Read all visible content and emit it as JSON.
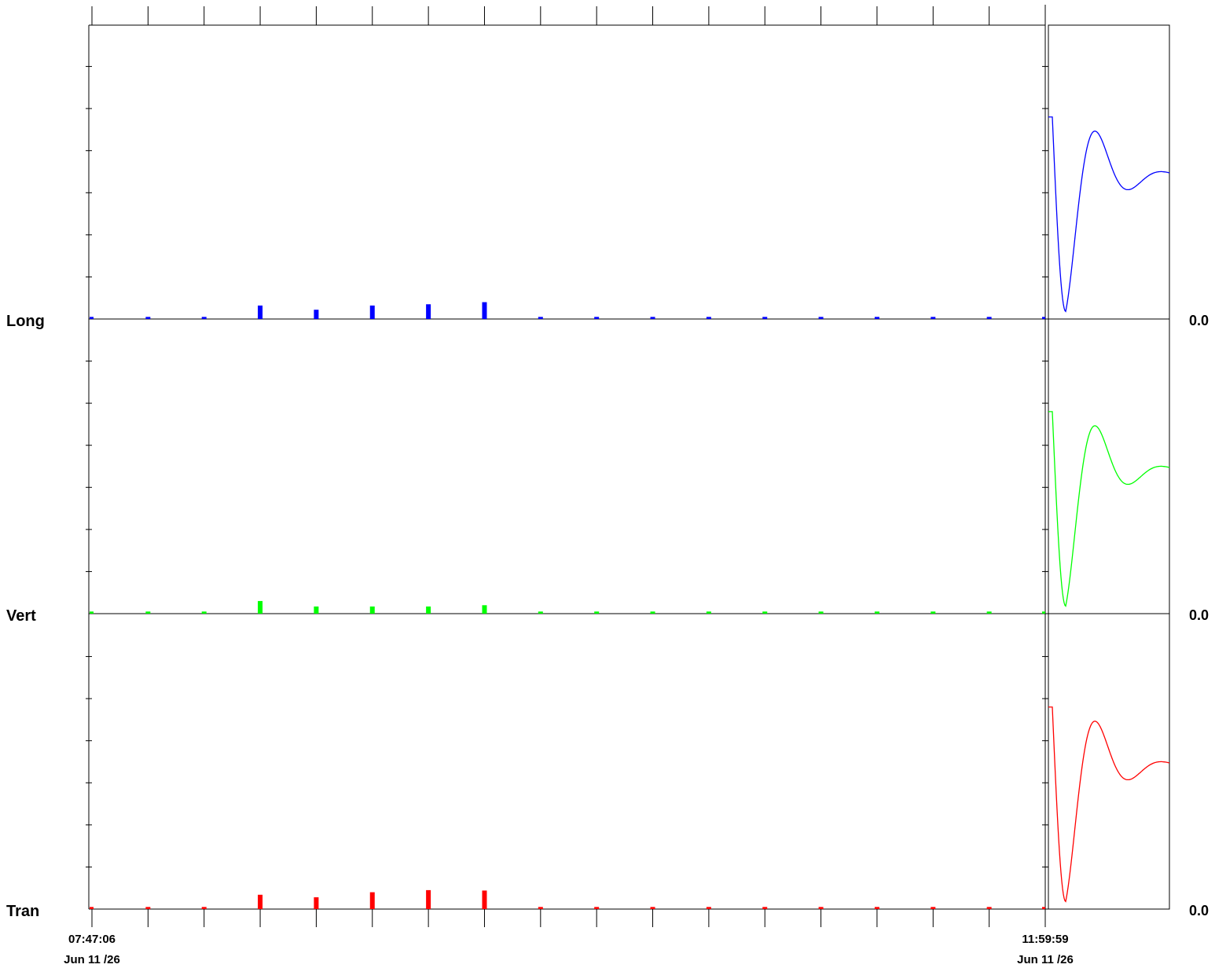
{
  "chart_data": {
    "type": "bar",
    "title": "",
    "xlabel": "",
    "ylabel": "",
    "legend": "none",
    "grid": false,
    "x_axis": {
      "start_time": "07:47:06",
      "start_date": "Jun 11 /26",
      "end_time": "11:59:59",
      "end_date": "Jun 11 /26",
      "bar_count": 18
    },
    "ylim": [
      0,
      7
    ],
    "series": [
      {
        "name": "Long",
        "color": "#0000ff",
        "zero_label": "0.0",
        "values": [
          0.05,
          0.05,
          0.05,
          0.32,
          0.22,
          0.32,
          0.35,
          0.4,
          0.05,
          0.05,
          0.05,
          0.05,
          0.05,
          0.05,
          0.05,
          0.05,
          0.05,
          0.05
        ]
      },
      {
        "name": "Vert",
        "color": "#00ff00",
        "zero_label": "0.0",
        "values": [
          0.05,
          0.05,
          0.05,
          0.3,
          0.17,
          0.17,
          0.17,
          0.2,
          0.05,
          0.05,
          0.05,
          0.05,
          0.05,
          0.05,
          0.05,
          0.05,
          0.05,
          0.05
        ]
      },
      {
        "name": "Tran",
        "color": "#ff0000",
        "zero_label": "0.0",
        "values": [
          0.05,
          0.05,
          0.05,
          0.34,
          0.28,
          0.4,
          0.45,
          0.44,
          0.05,
          0.05,
          0.05,
          0.05,
          0.05,
          0.05,
          0.05,
          0.05,
          0.05,
          0.05
        ]
      }
    ],
    "waveform": {
      "description_free": true,
      "pulse_level": 4.8,
      "trough_level": 0.18,
      "peak_level": 4.05,
      "final_level": 3.4
    }
  }
}
